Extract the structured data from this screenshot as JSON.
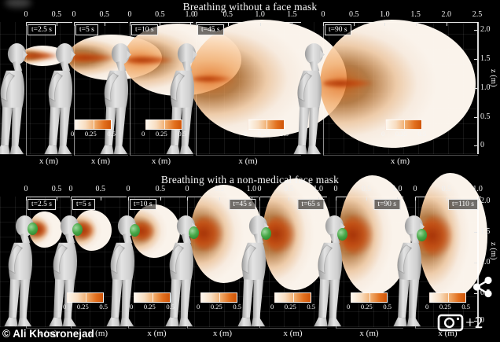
{
  "overlays": {
    "watermark": "© Ali Khosronejad",
    "photo_count": "+2",
    "camera_icon": "camera-gallery-icon",
    "share_icon": "share-icon"
  },
  "colorbar": {
    "ticks": [
      "0",
      "0.25",
      "0.5"
    ]
  },
  "rows": [
    {
      "title": "Breathing without a face mask",
      "xlabel": "x (m)",
      "zlabel": "z (m)",
      "z_ticks": [
        "2.0",
        "1.5",
        "1.0",
        "0.5",
        "0"
      ],
      "panels": [
        {
          "time": "t=2.5 s",
          "ticks": [
            "0",
            "0.5"
          ]
        },
        {
          "time": "t=5 s",
          "ticks": [
            "0",
            "0.5"
          ]
        },
        {
          "time": "t=10 s",
          "ticks": [
            "0",
            "0.5",
            "1.0"
          ]
        },
        {
          "time": "t=45 s",
          "ticks": [
            "0",
            "0.5",
            "1.0",
            "1.5"
          ]
        },
        {
          "time": "t=90 s",
          "ticks": [
            "0",
            "0.5",
            "1.0",
            "1.5",
            "2.0",
            "2.5"
          ]
        }
      ]
    },
    {
      "title": "Breathing with a non-medical face mask",
      "xlabel": "x (m)",
      "zlabel": "z (m)",
      "z_ticks": [
        "2.0",
        "1.5",
        "1.0",
        "0.5",
        "0"
      ],
      "panels": [
        {
          "time": "t=2.5 s",
          "ticks": [
            "0",
            "0.5"
          ]
        },
        {
          "time": "t=5 s",
          "ticks": [
            "0",
            "0.5"
          ]
        },
        {
          "time": "t=10 s",
          "ticks": [
            "0",
            "0.5"
          ]
        },
        {
          "time": "t=45 s",
          "ticks": [
            "0",
            "0.5",
            "1.0"
          ]
        },
        {
          "time": "t=65 s",
          "ticks": [
            "0",
            "0.5",
            "1.0"
          ]
        },
        {
          "time": "t=90 s",
          "ticks": [
            "0",
            "0.5",
            "1.0"
          ]
        },
        {
          "time": "t=110 s",
          "ticks": [
            "0",
            "0.5",
            "1.0"
          ]
        }
      ]
    }
  ],
  "chart_data": {
    "type": "heatmap",
    "title_top": "Breathing without a face mask",
    "title_bottom": "Breathing with a non-medical face mask",
    "xlabel": "x (m)",
    "zlabel": "z (m)",
    "z_ticks": [
      2.0,
      1.5,
      1.0,
      0.5,
      0
    ],
    "colorbar": {
      "min": 0,
      "max": 0.5,
      "ticks": [
        0,
        0.25,
        0.5
      ]
    },
    "series": [
      {
        "name": "without face mask",
        "time_s": [
          2.5,
          5,
          10,
          45,
          90
        ],
        "x_axis_max_m": [
          0.5,
          0.5,
          1.0,
          1.5,
          2.5
        ],
        "approx_plume_extent_m": [
          0.5,
          0.8,
          1.2,
          1.8,
          2.4
        ]
      },
      {
        "name": "with non-medical face mask",
        "time_s": [
          2.5,
          5,
          10,
          45,
          65,
          90,
          110
        ],
        "x_axis_max_m": [
          0.5,
          0.5,
          0.5,
          1.0,
          1.0,
          1.0,
          1.0
        ],
        "approx_plume_extent_m": [
          0.2,
          0.25,
          0.35,
          0.6,
          0.65,
          0.7,
          0.75
        ]
      }
    ],
    "accent_colors": {
      "plume_core": "#c24a0a",
      "plume_halo": "#fdf3e8",
      "mask": "#49a849"
    }
  }
}
